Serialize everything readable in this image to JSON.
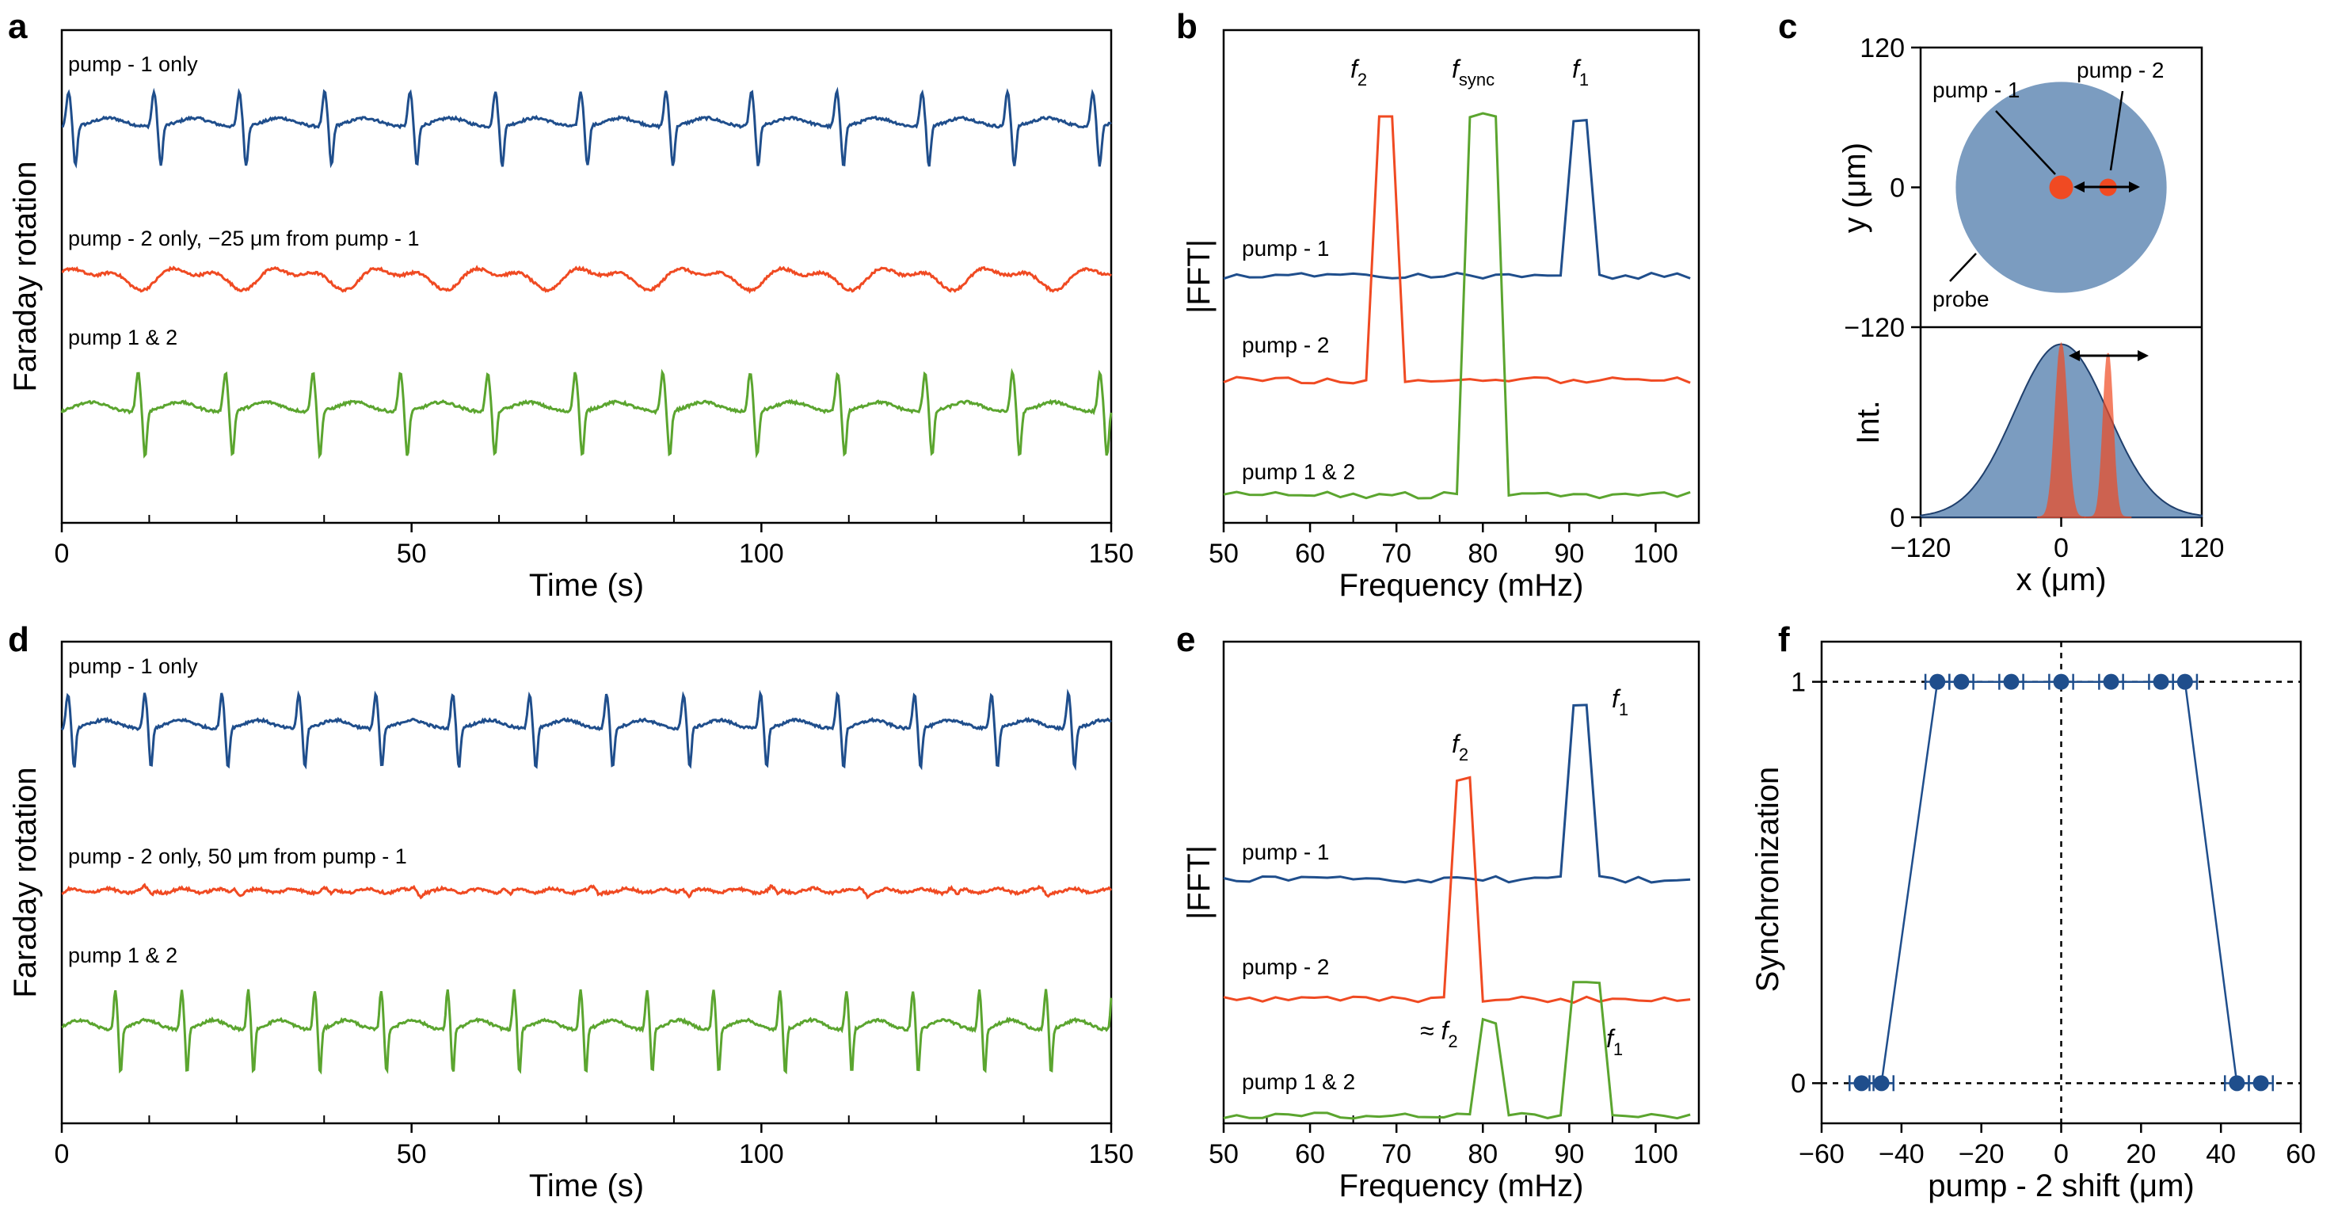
{
  "colors": {
    "blue": "#1f4e8c",
    "red": "#f04a22",
    "green": "#5ba52f",
    "probe": "#7b9cc0",
    "black": "#000000"
  },
  "chart_data": [
    {
      "panel": "a",
      "type": "line",
      "xlabel": "Time (s)",
      "ylabel": "Faraday rotation",
      "xlim": [
        0,
        150
      ],
      "xticks": [
        0,
        50,
        100,
        150
      ],
      "series": [
        {
          "name": "pump - 1 only",
          "color": "blue",
          "period": 12.2,
          "amplitude": 0.8,
          "shape": "spike"
        },
        {
          "name": "pump - 2 only,  −25 μm from pump - 1",
          "color": "red",
          "period": 14.5,
          "amplitude": 0.3,
          "shape": "wave"
        },
        {
          "name": "pump 1 & 2",
          "color": "green",
          "period": 12.5,
          "amplitude": 0.9,
          "shape": "spike"
        }
      ]
    },
    {
      "panel": "b",
      "type": "line",
      "xlabel": "Frequency (mHz)",
      "ylabel": "|FFT|",
      "xlim": [
        50,
        105
      ],
      "xticks": [
        50,
        60,
        70,
        80,
        90,
        100
      ],
      "peak_labels": [
        {
          "base": "f",
          "sub": "2",
          "x": 68.5
        },
        {
          "base": "f",
          "sub": "sync",
          "x": 80
        },
        {
          "base": "f",
          "sub": "1",
          "x": 91
        }
      ],
      "series": [
        {
          "name": "pump - 1",
          "color": "blue",
          "peaks": [
            [
              91,
              1.0
            ]
          ]
        },
        {
          "name": "pump - 2",
          "color": "red",
          "peaks": [
            [
              68.5,
              1.0
            ]
          ]
        },
        {
          "name": "pump 1 & 2",
          "color": "green",
          "peaks": [
            [
              80,
              1.0
            ]
          ]
        }
      ]
    },
    {
      "panel": "c",
      "type": "diagram",
      "top": {
        "xlim": [
          -120,
          120
        ],
        "ylim": [
          -120,
          120
        ],
        "yticks": [
          -120,
          0,
          120
        ],
        "ylabel": "y (μm)",
        "probe_radius": 90,
        "pump1_x": 0,
        "pump2_x": 40,
        "labels": {
          "pump1": "pump - 1",
          "pump2": "pump - 2",
          "probe": "probe"
        }
      },
      "bottom": {
        "xlim": [
          -120,
          120
        ],
        "xticks": [
          -120,
          0,
          120
        ],
        "yticks": [
          0
        ],
        "ylabel": "Int.",
        "xlabel": "x (μm)",
        "gauss_sigma": 40,
        "pump_sigma": 5
      }
    },
    {
      "panel": "d",
      "type": "line",
      "xlabel": "Time (s)",
      "ylabel": "Faraday rotation",
      "xlim": [
        0,
        150
      ],
      "xticks": [
        0,
        50,
        100,
        150
      ],
      "series": [
        {
          "name": "pump - 1 only",
          "color": "blue",
          "period": 11.0,
          "amplitude": 0.8,
          "shape": "spike"
        },
        {
          "name": "pump - 2 only, 50 μm from pump - 1",
          "color": "red",
          "period": 12.8,
          "amplitude": 0.15,
          "shape": "small"
        },
        {
          "name": "pump 1 & 2",
          "color": "green",
          "period": 9.5,
          "amplitude": 0.9,
          "shape": "spike"
        }
      ]
    },
    {
      "panel": "e",
      "type": "line",
      "xlabel": "Frequency (mHz)",
      "ylabel": "|FFT|",
      "xlim": [
        50,
        105
      ],
      "xticks": [
        50,
        60,
        70,
        80,
        90,
        100
      ],
      "peak_labels": [
        {
          "base": "f",
          "sub": "1",
          "x": 91
        },
        {
          "base": "f",
          "sub": "2",
          "x": 78
        },
        {
          "prefix": "≈ ",
          "base": "f",
          "sub": "2",
          "x": 78
        },
        {
          "base": "f",
          "sub": "1",
          "x": 93
        }
      ],
      "series": [
        {
          "name": "pump - 1",
          "color": "blue",
          "peaks": [
            [
              91,
              1.0
            ]
          ]
        },
        {
          "name": "pump - 2",
          "color": "red",
          "peaks": [
            [
              77.5,
              1.0
            ]
          ]
        },
        {
          "name": "pump 1 & 2",
          "color": "green",
          "peaks": [
            [
              80.5,
              0.5
            ],
            [
              92,
              0.7
            ]
          ]
        }
      ]
    },
    {
      "panel": "f",
      "type": "scatter",
      "xlabel": "pump - 2 shift (μm)",
      "ylabel": "Synchronization",
      "xlim": [
        -60,
        60
      ],
      "ylim": [
        -0.1,
        1.1
      ],
      "xticks": [
        -60,
        -40,
        -20,
        0,
        20,
        40,
        60
      ],
      "yticks": [
        0,
        1
      ],
      "x": [
        -50,
        -45,
        -31,
        -25,
        -12.5,
        0,
        12.5,
        25,
        31,
        44,
        50
      ],
      "y": [
        0,
        0,
        1,
        1,
        1,
        1,
        1,
        1,
        1,
        0,
        0
      ],
      "xerr": 3
    }
  ]
}
